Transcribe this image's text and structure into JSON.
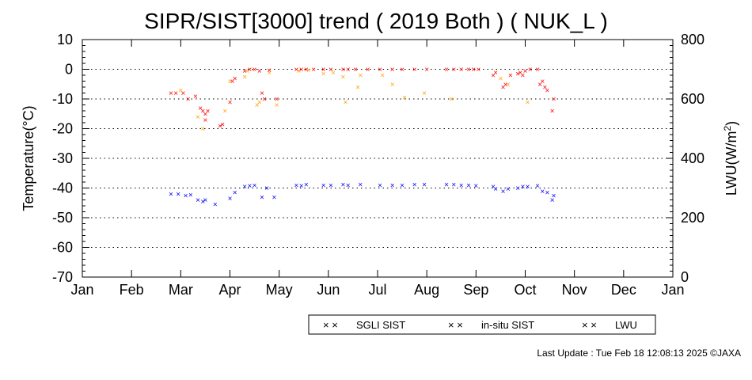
{
  "chart_data": {
    "type": "scatter",
    "title": "SIPR/SIST[3000] trend ( 2019 Both ) ( NUK_L )",
    "ylabel": "Temperature(°C)",
    "y2label": "LWU(W/m²)",
    "y2label_base": "LWU(W/m",
    "y2label_exp": "2",
    "y2label_close": ")",
    "ylim": [
      -70,
      10
    ],
    "y2lim": [
      0,
      800
    ],
    "yticks": [
      "10",
      "0",
      "-10",
      "-20",
      "-30",
      "-40",
      "-50",
      "-60",
      "-70"
    ],
    "y2ticks": [
      "800",
      "600",
      "400",
      "200",
      "0"
    ],
    "months": [
      "Jan",
      "Feb",
      "Mar",
      "Apr",
      "May",
      "Jun",
      "Jul",
      "Aug",
      "Sep",
      "Oct",
      "Nov",
      "Dec",
      "Jan"
    ],
    "x_unit": "month (1 = Jan 1)",
    "grid": "horizontal dotted",
    "legend_position": "bottom-center",
    "series": [
      {
        "name": "SGLI SIST",
        "color": "#ffa500",
        "axis": "left",
        "points": [
          [
            3.0,
            -7
          ],
          [
            3.35,
            -16
          ],
          [
            3.45,
            -20
          ],
          [
            3.9,
            -14
          ],
          [
            4.0,
            -4
          ],
          [
            4.3,
            -2.5
          ],
          [
            4.35,
            -0.5
          ],
          [
            4.55,
            -12
          ],
          [
            4.6,
            -11
          ],
          [
            4.8,
            -1
          ],
          [
            4.95,
            -12
          ],
          [
            5.4,
            -0.5
          ],
          [
            5.6,
            -0.3
          ],
          [
            5.9,
            -1.5
          ],
          [
            6.1,
            -1
          ],
          [
            6.3,
            -2.5
          ],
          [
            6.35,
            -11
          ],
          [
            6.6,
            -6
          ],
          [
            6.65,
            -2
          ],
          [
            7.1,
            -2
          ],
          [
            7.3,
            -5
          ],
          [
            7.55,
            -9.5
          ],
          [
            7.95,
            -8
          ],
          [
            8.5,
            -10
          ],
          [
            9.5,
            -3
          ],
          [
            9.65,
            -5
          ],
          [
            10.05,
            -11
          ]
        ]
      },
      {
        "name": "in-situ SIST",
        "color": "#ff0000",
        "axis": "left",
        "points": [
          [
            2.8,
            -8
          ],
          [
            2.9,
            -8
          ],
          [
            3.05,
            -8
          ],
          [
            3.15,
            -10
          ],
          [
            3.3,
            -9
          ],
          [
            3.4,
            -13
          ],
          [
            3.45,
            -14
          ],
          [
            3.5,
            -15
          ],
          [
            3.55,
            -14
          ],
          [
            3.5,
            -17
          ],
          [
            3.8,
            -19
          ],
          [
            3.85,
            -18.5
          ],
          [
            4.0,
            -11
          ],
          [
            4.05,
            -4
          ],
          [
            4.1,
            -3
          ],
          [
            4.3,
            -0.5
          ],
          [
            4.4,
            0
          ],
          [
            4.5,
            0
          ],
          [
            4.6,
            -0.5
          ],
          [
            4.65,
            -8
          ],
          [
            4.7,
            -10
          ],
          [
            4.8,
            -0.2
          ],
          [
            4.95,
            -10
          ],
          [
            5.35,
            0
          ],
          [
            5.45,
            0
          ],
          [
            5.55,
            0
          ],
          [
            5.7,
            0
          ],
          [
            5.9,
            0
          ],
          [
            6.05,
            0
          ],
          [
            6.3,
            0
          ],
          [
            6.4,
            0
          ],
          [
            6.55,
            0
          ],
          [
            6.8,
            0
          ],
          [
            7.05,
            0
          ],
          [
            7.3,
            0
          ],
          [
            7.5,
            0
          ],
          [
            7.75,
            0
          ],
          [
            8.0,
            0
          ],
          [
            8.4,
            0
          ],
          [
            8.55,
            0
          ],
          [
            8.7,
            0
          ],
          [
            8.85,
            0
          ],
          [
            8.95,
            0
          ],
          [
            9.05,
            0
          ],
          [
            9.35,
            -2
          ],
          [
            9.4,
            -1
          ],
          [
            9.55,
            -6
          ],
          [
            9.6,
            -5
          ],
          [
            9.7,
            -2
          ],
          [
            9.85,
            -1.5
          ],
          [
            9.9,
            -1
          ],
          [
            9.95,
            -2
          ],
          [
            10.0,
            -0.5
          ],
          [
            10.1,
            0
          ],
          [
            10.25,
            0
          ],
          [
            10.3,
            -5
          ],
          [
            10.35,
            -4
          ],
          [
            10.4,
            -6
          ],
          [
            10.45,
            -7
          ],
          [
            10.55,
            -14
          ],
          [
            10.58,
            -10
          ]
        ]
      },
      {
        "name": "LWU",
        "color": "#0000ff",
        "axis": "right",
        "points": [
          [
            2.8,
            280
          ],
          [
            2.95,
            280
          ],
          [
            3.1,
            275
          ],
          [
            3.2,
            278
          ],
          [
            3.35,
            260
          ],
          [
            3.45,
            255
          ],
          [
            3.5,
            260
          ],
          [
            3.7,
            245
          ],
          [
            4.0,
            265
          ],
          [
            4.1,
            285
          ],
          [
            4.3,
            305
          ],
          [
            4.4,
            308
          ],
          [
            4.5,
            310
          ],
          [
            4.65,
            270
          ],
          [
            4.75,
            300
          ],
          [
            4.9,
            270
          ],
          [
            5.35,
            310
          ],
          [
            5.45,
            308
          ],
          [
            5.55,
            312
          ],
          [
            5.9,
            310
          ],
          [
            6.05,
            310
          ],
          [
            6.3,
            312
          ],
          [
            6.4,
            310
          ],
          [
            6.65,
            312
          ],
          [
            7.05,
            310
          ],
          [
            7.3,
            310
          ],
          [
            7.5,
            310
          ],
          [
            7.75,
            312
          ],
          [
            7.95,
            312
          ],
          [
            8.4,
            312
          ],
          [
            8.55,
            312
          ],
          [
            8.7,
            310
          ],
          [
            8.85,
            310
          ],
          [
            9.0,
            308
          ],
          [
            9.35,
            305
          ],
          [
            9.4,
            298
          ],
          [
            9.55,
            290
          ],
          [
            9.65,
            298
          ],
          [
            9.85,
            300
          ],
          [
            9.95,
            305
          ],
          [
            10.05,
            305
          ],
          [
            10.25,
            308
          ],
          [
            10.35,
            290
          ],
          [
            10.45,
            285
          ],
          [
            10.55,
            260
          ],
          [
            10.58,
            275
          ]
        ]
      }
    ]
  },
  "legend": {
    "items": [
      {
        "symbol": "× ×",
        "label": "SGLI SIST",
        "color": "#ffa500"
      },
      {
        "symbol": "× ×",
        "label": "in-situ SIST",
        "color": "#ff0000"
      },
      {
        "symbol": "× ×",
        "label": "LWU",
        "color": "#0000ff"
      }
    ]
  },
  "footer": {
    "last_update": "Last Update : Tue Feb 18 12:08:13 2025  ©JAXA"
  }
}
